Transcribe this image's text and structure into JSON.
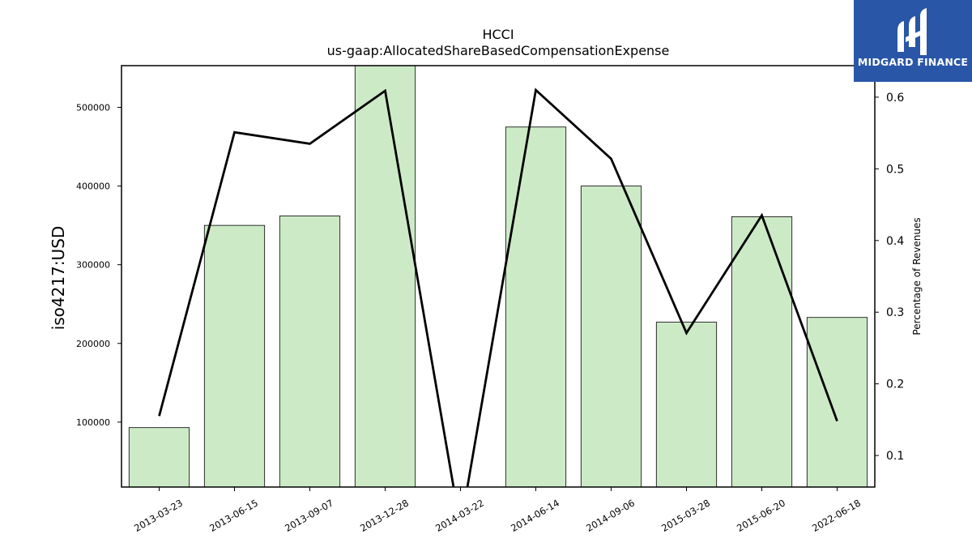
{
  "chart_data": {
    "type": "bar",
    "title": "HCCI",
    "subtitle": "us-gaap:AllocatedShareBasedCompensationExpense",
    "ylabel": "iso4217:USD",
    "y2label": "Percentage of Revenues",
    "categories": [
      "2013-03-23",
      "2013-06-15",
      "2013-09-07",
      "2013-12-28",
      "2014-03-22",
      "2014-06-14",
      "2014-09-06",
      "2015-03-28",
      "2015-06-20",
      "2022-06-18"
    ],
    "series": [
      {
        "type": "bar",
        "axis": "left",
        "values": [
          93000,
          350000,
          362000,
          560000,
          0,
          475000,
          400000,
          227000,
          361000,
          233000
        ]
      },
      {
        "type": "line",
        "axis": "right",
        "values": [
          0.155,
          0.551,
          0.535,
          0.609,
          0.0,
          0.61,
          0.514,
          0.271,
          0.435,
          0.148
        ]
      }
    ],
    "ylim": [
      17500,
      553000
    ],
    "y2lim": [
      0.056,
      0.644
    ],
    "yticks": [
      100000,
      200000,
      300000,
      400000,
      500000
    ],
    "y2ticks": [
      0.1,
      0.2,
      0.3,
      0.4,
      0.5,
      0.6
    ],
    "grid": false,
    "bar_color": "#cdeac7",
    "line_color": "#000000"
  },
  "logo": {
    "text": "MIDGARD FINANCE",
    "background": "#2a56a8"
  }
}
